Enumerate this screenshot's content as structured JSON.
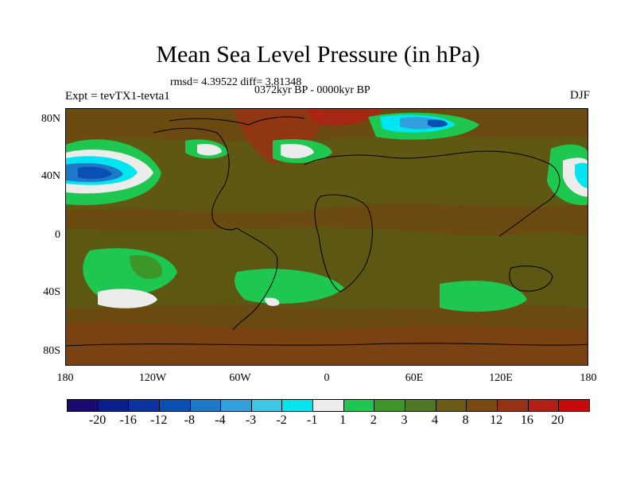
{
  "title": "Mean Sea Level Pressure (in hPa)",
  "stats": "rmsd= 4.39522  diff= 3.81348",
  "period": "0372kyr BP - 0000kyr BP",
  "experiment": "Expt = tevTX1-tevta1",
  "season": "DJF",
  "lat_labels": [
    "80N",
    "40N",
    "0",
    "40S",
    "80S"
  ],
  "lon_labels": [
    "180",
    "120W",
    "60W",
    "0",
    "60E",
    "120E",
    "180"
  ],
  "colorbar": {
    "labels": [
      "-20",
      "-16",
      "-12",
      "-8",
      "-4",
      "-3",
      "-2",
      "-1",
      "1",
      "2",
      "3",
      "4",
      "8",
      "12",
      "16",
      "20"
    ],
    "colors": [
      "#1a0a6e",
      "#0a1e8c",
      "#0a32a0",
      "#0a50b4",
      "#1e78c8",
      "#32a0dc",
      "#3cc8e6",
      "#00e6f0",
      "#ececec",
      "#1ec850",
      "#3c9628",
      "#507823",
      "#6a5a14",
      "#7a4a10",
      "#963214",
      "#b41e14",
      "#c80a0a"
    ]
  }
}
